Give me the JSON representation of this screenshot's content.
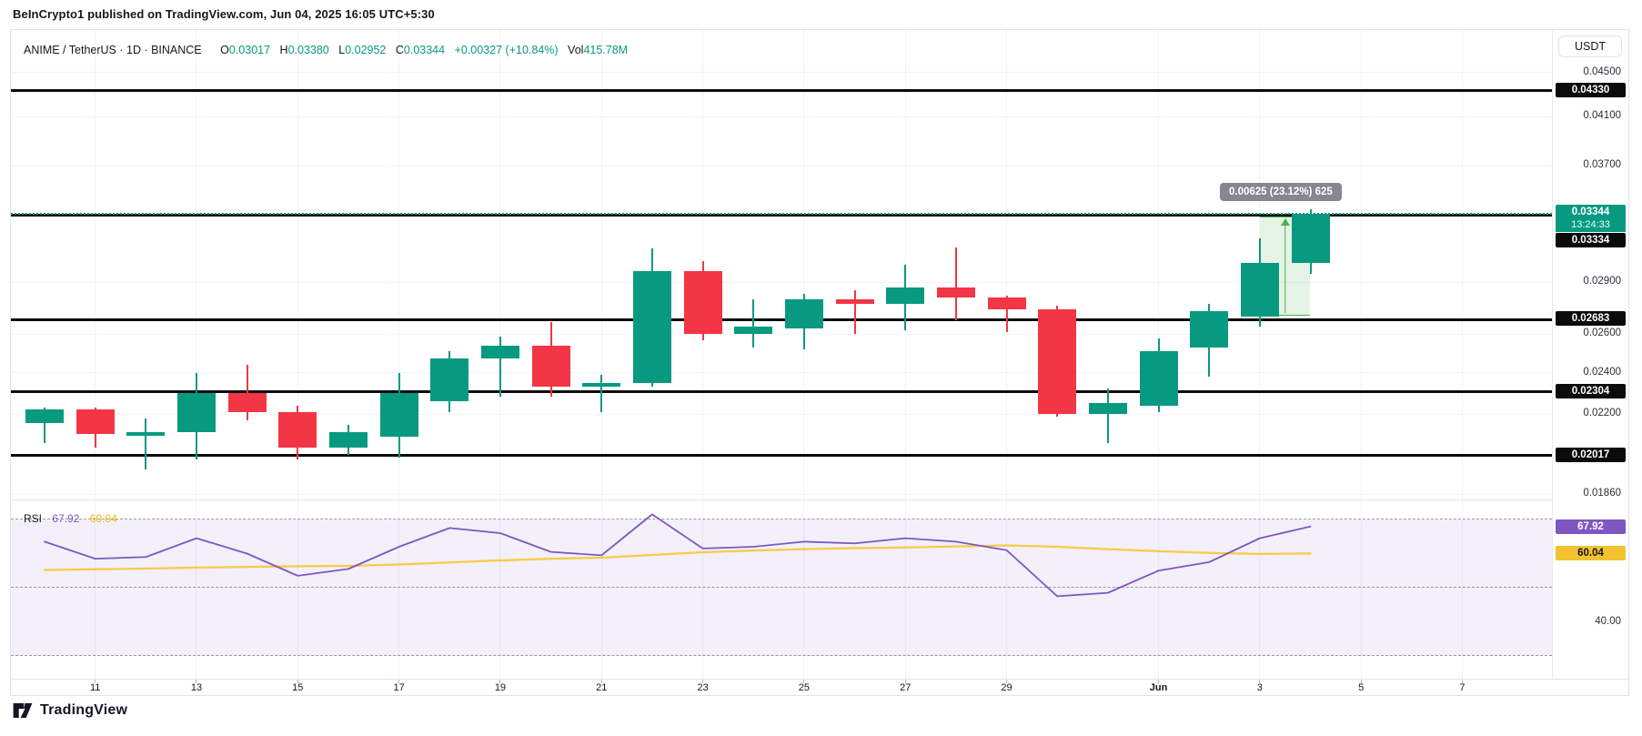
{
  "header": {
    "published_line": "BeInCrypto1 published on TradingView.com, Jun 04, 2025 16:05 UTC+5:30"
  },
  "legend": {
    "title": "ANIME / TetherUS · 1D · BINANCE",
    "o_label": "O",
    "o_val": "0.03017",
    "h_label": "H",
    "h_val": "0.03380",
    "l_label": "L",
    "l_val": "0.02952",
    "c_label": "C",
    "c_val": "0.03344",
    "change": "+0.00327 (+10.84%)",
    "vol_label": "Vol",
    "vol_val": "415.78M"
  },
  "price_axis": {
    "currency_button": "USDT",
    "plain_ticks": [
      {
        "text": "0.04500",
        "price": 0.045
      },
      {
        "text": "0.04100",
        "price": 0.041
      },
      {
        "text": "0.03700",
        "price": 0.037
      },
      {
        "text": "0.02900",
        "price": 0.029
      },
      {
        "text": "0.02600",
        "price": 0.026
      },
      {
        "text": "0.02400",
        "price": 0.024
      },
      {
        "text": "0.02200",
        "price": 0.022
      },
      {
        "text": "0.01860",
        "price": 0.0186
      }
    ],
    "level_labels": [
      {
        "text": "0.04330",
        "price": 0.0433
      },
      {
        "text": "0.02683",
        "price": 0.02683
      },
      {
        "text": "0.02304",
        "price": 0.02304
      },
      {
        "text": "0.02017",
        "price": 0.02017
      }
    ],
    "current": {
      "price_text": "0.03344",
      "countdown": "13:24:33",
      "price": 0.03344
    },
    "below_current": {
      "text": "0.03334",
      "price": 0.03334
    }
  },
  "time_axis": {
    "labels": [
      {
        "text": "11",
        "i": 1
      },
      {
        "text": "13",
        "i": 3
      },
      {
        "text": "15",
        "i": 5
      },
      {
        "text": "17",
        "i": 7
      },
      {
        "text": "19",
        "i": 9
      },
      {
        "text": "21",
        "i": 11
      },
      {
        "text": "23",
        "i": 13
      },
      {
        "text": "25",
        "i": 15
      },
      {
        "text": "27",
        "i": 17
      },
      {
        "text": "29",
        "i": 19
      },
      {
        "text": "Jun",
        "i": 22,
        "bold": true
      },
      {
        "text": "3",
        "i": 24
      },
      {
        "text": "5",
        "i": 26
      },
      {
        "text": "7",
        "i": 28
      }
    ]
  },
  "tooltip": {
    "text": "0.00625 (23.12%) 625"
  },
  "rsi_legend": {
    "title": "RSI",
    "value_text": "67.92",
    "ma_text": "60.04"
  },
  "rsi_axis": {
    "value_badge": "67.92",
    "ma_badge": "60.04",
    "plain_tick": {
      "text": "40.00",
      "value": 40
    }
  },
  "attribution": {
    "text": "TradingView"
  },
  "colors": {
    "up": "#089981",
    "down": "#f23645",
    "level_line": "#0b0b0b",
    "grid": "#f0f3fa",
    "axis_text": "#2a2e39",
    "current_badge": "#089981",
    "black_badge": "#0b0b0b",
    "tooltip_bg": "#85888e",
    "rsi_line": "#7e57c2",
    "rsi_ma_line": "#f7ca4a",
    "rsi_band": "rgba(126,87,194,0.09)",
    "rsi_dash": "#787b86",
    "rsi_value_badge": "#7e57c2",
    "rsi_ma_badge": "#f2c230",
    "range_green": "#4caf50",
    "range_fill": "rgba(76,175,80,0.15)"
  },
  "chart_data": {
    "type": "candlestick",
    "title": "ANIME / TetherUS · 1D · BINANCE",
    "symbol": "ANIME/USDT",
    "interval": "1D",
    "exchange": "BINANCE",
    "scale": "logarithmic",
    "ylim": [
      0.0186,
      0.0462
    ],
    "grid": true,
    "dates": [
      "May 10",
      "May 11",
      "May 12",
      "May 13",
      "May 14",
      "May 15",
      "May 16",
      "May 17",
      "May 18",
      "May 19",
      "May 20",
      "May 21",
      "May 22",
      "May 23",
      "May 24",
      "May 25",
      "May 26",
      "May 27",
      "May 28",
      "May 29",
      "May 30",
      "May 31",
      "Jun 1",
      "Jun 2",
      "Jun 3",
      "Jun 4"
    ],
    "ohlc": [
      [
        0.0216,
        0.0223,
        0.0207,
        0.0222
      ],
      [
        0.0222,
        0.0223,
        0.0205,
        0.0211
      ],
      [
        0.0211,
        0.0218,
        0.0196,
        0.0212
      ],
      [
        0.0212,
        0.024,
        0.02,
        0.023
      ],
      [
        0.023,
        0.0244,
        0.0217,
        0.0221
      ],
      [
        0.0221,
        0.0224,
        0.02,
        0.0205
      ],
      [
        0.0205,
        0.0215,
        0.0202,
        0.0212
      ],
      [
        0.021,
        0.024,
        0.0201,
        0.023
      ],
      [
        0.0226,
        0.0251,
        0.0221,
        0.0247
      ],
      [
        0.0247,
        0.0259,
        0.0228,
        0.0254
      ],
      [
        0.0254,
        0.0267,
        0.0228,
        0.0233
      ],
      [
        0.0233,
        0.0239,
        0.0221,
        0.0235
      ],
      [
        0.0235,
        0.0311,
        0.0233,
        0.0297
      ],
      [
        0.0297,
        0.0303,
        0.0257,
        0.026
      ],
      [
        0.026,
        0.028,
        0.0253,
        0.0264
      ],
      [
        0.0263,
        0.0283,
        0.0252,
        0.028
      ],
      [
        0.028,
        0.0285,
        0.026,
        0.0277
      ],
      [
        0.0277,
        0.0301,
        0.0262,
        0.0287
      ],
      [
        0.0287,
        0.0312,
        0.0268,
        0.0281
      ],
      [
        0.0281,
        0.0282,
        0.0261,
        0.0274
      ],
      [
        0.0274,
        0.0276,
        0.0219,
        0.022
      ],
      [
        0.022,
        0.0232,
        0.0207,
        0.0225
      ],
      [
        0.0224,
        0.0258,
        0.0221,
        0.0251
      ],
      [
        0.0253,
        0.0277,
        0.0238,
        0.0273
      ],
      [
        0.027,
        0.0318,
        0.0264,
        0.0302
      ],
      [
        0.03017,
        0.0338,
        0.02952,
        0.03344
      ]
    ],
    "last_candle_ohlc": {
      "open": 0.03017,
      "high": 0.0338,
      "low": 0.02952,
      "close": 0.03344,
      "change": 0.00327,
      "change_pct": 10.84,
      "volume": "415.78M"
    },
    "horizontal_levels": [
      0.0433,
      0.03334,
      0.02683,
      0.02304,
      0.02017
    ],
    "current_price": 0.03344,
    "price_range_tool": {
      "from_bar": "Jun 3",
      "to_bar": "Jun 4",
      "from_price": 0.02703,
      "to_price": 0.03328,
      "label": "0.00625 (23.12%) 625"
    },
    "rsi": {
      "name": "RSI",
      "levels": [
        70,
        50,
        30
      ],
      "axis_shown": [
        40.0
      ],
      "last_value": 67.92,
      "last_ma": 60.04,
      "values": [
        63.5,
        58.5,
        59,
        64.5,
        60,
        53.5,
        55.5,
        62,
        67.5,
        66,
        60.5,
        59.5,
        71.5,
        61.5,
        62,
        63.5,
        63,
        64.5,
        63.5,
        61,
        47.5,
        48.5,
        55,
        57.5,
        64.5,
        67.92
      ],
      "ma_values": [
        55.2,
        55.4,
        55.6,
        55.9,
        56.1,
        56.3,
        56.4,
        56.8,
        57.4,
        58,
        58.5,
        58.8,
        59.6,
        60.4,
        60.9,
        61.3,
        61.6,
        61.8,
        62.1,
        62.4,
        62,
        61.3,
        60.7,
        60.2,
        59.9,
        60.04
      ]
    }
  }
}
